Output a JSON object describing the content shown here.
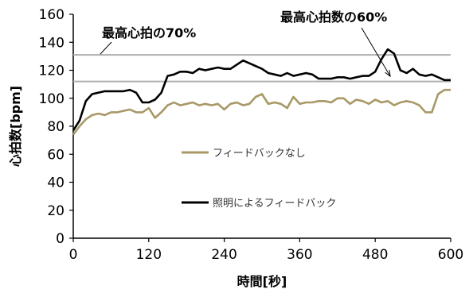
{
  "chart_data": {
    "type": "line",
    "title": "",
    "xlabel": "時間[秒]",
    "ylabel": "心拍数[bpm]",
    "xlim": [
      0,
      600
    ],
    "ylim": [
      0,
      160
    ],
    "x_ticks": [
      0,
      120,
      240,
      360,
      480,
      600
    ],
    "y_ticks": [
      0,
      20,
      40,
      60,
      80,
      100,
      120,
      140,
      160
    ],
    "grid": false,
    "legend_position": "center",
    "legend": [
      {
        "label": "フィードバックなし",
        "color": "#a89866"
      },
      {
        "label": "照明によるフィードバック",
        "color": "#000000"
      }
    ],
    "reference_lines": [
      {
        "y": 131,
        "label": "最高心拍の70%",
        "color": "#b0b0b0"
      },
      {
        "y": 112,
        "label": "最高心拍数の60%",
        "color": "#b0b0b0"
      }
    ],
    "series": [
      {
        "name": "照明によるフィードバック",
        "color": "#000000",
        "x": [
          0,
          10,
          20,
          30,
          40,
          50,
          60,
          70,
          80,
          90,
          100,
          110,
          120,
          130,
          140,
          150,
          160,
          170,
          180,
          190,
          200,
          210,
          220,
          230,
          240,
          250,
          260,
          270,
          280,
          290,
          300,
          310,
          320,
          330,
          340,
          350,
          360,
          370,
          380,
          390,
          400,
          410,
          420,
          430,
          440,
          450,
          460,
          470,
          480,
          490,
          500,
          510,
          520,
          530,
          540,
          550,
          560,
          570,
          580,
          590,
          600
        ],
        "y": [
          77,
          84,
          98,
          103,
          104,
          105,
          105,
          105,
          105,
          106,
          104,
          97,
          97,
          99,
          104,
          116,
          117,
          119,
          119,
          118,
          121,
          120,
          121,
          122,
          121,
          121,
          124,
          127,
          125,
          123,
          121,
          118,
          117,
          116,
          118,
          116,
          117,
          118,
          117,
          114,
          114,
          114,
          115,
          115,
          114,
          115,
          116,
          116,
          119,
          128,
          135,
          132,
          120,
          118,
          121,
          117,
          116,
          117,
          115,
          113,
          113
        ]
      },
      {
        "name": "フィードバックなし",
        "color": "#a89866",
        "x": [
          0,
          10,
          20,
          30,
          40,
          50,
          60,
          70,
          80,
          90,
          100,
          110,
          120,
          130,
          140,
          150,
          160,
          170,
          180,
          190,
          200,
          210,
          220,
          230,
          240,
          250,
          260,
          270,
          280,
          290,
          300,
          310,
          320,
          330,
          340,
          350,
          360,
          370,
          380,
          390,
          400,
          410,
          420,
          430,
          440,
          450,
          460,
          470,
          480,
          490,
          500,
          510,
          520,
          530,
          540,
          550,
          560,
          570,
          580,
          590,
          600
        ],
        "y": [
          74,
          80,
          85,
          88,
          89,
          88,
          90,
          90,
          91,
          92,
          90,
          90,
          93,
          86,
          90,
          95,
          97,
          95,
          96,
          97,
          95,
          96,
          95,
          96,
          92,
          96,
          97,
          95,
          96,
          101,
          103,
          96,
          97,
          96,
          93,
          101,
          96,
          97,
          97,
          98,
          98,
          97,
          100,
          100,
          96,
          99,
          98,
          96,
          99,
          97,
          98,
          95,
          97,
          98,
          97,
          95,
          90,
          90,
          103,
          106,
          106
        ]
      }
    ]
  }
}
